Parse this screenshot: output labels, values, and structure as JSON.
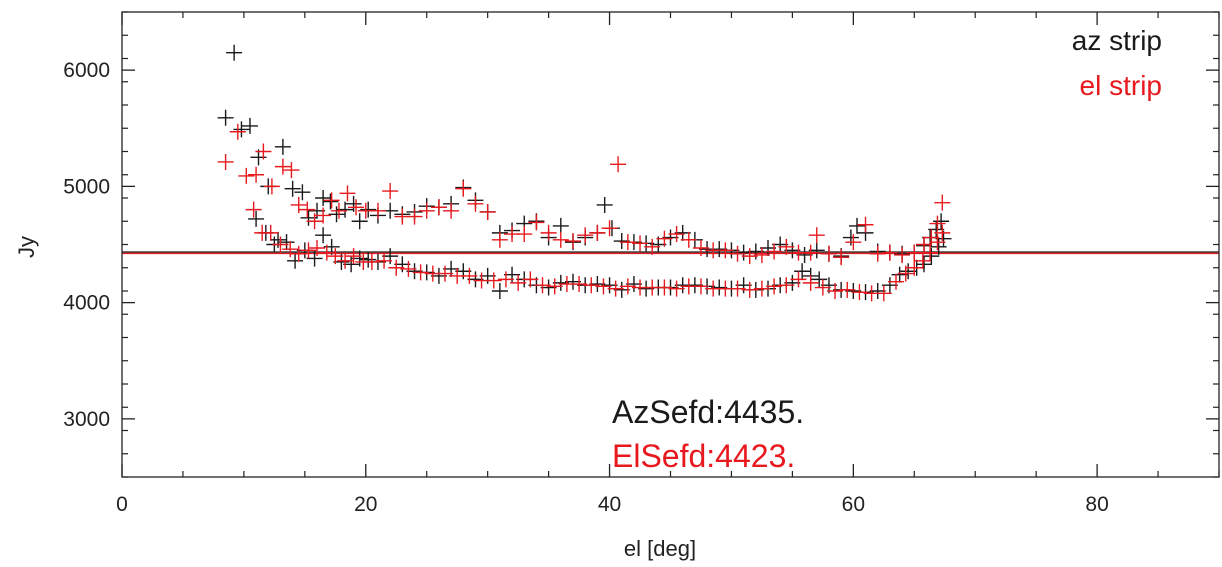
{
  "chart_data": {
    "type": "scatter",
    "xlabel": "el [deg]",
    "ylabel": "Jy",
    "xlim": [
      0,
      90
    ],
    "ylim": [
      2500,
      6500
    ],
    "xticks": [
      0,
      20,
      40,
      60,
      80
    ],
    "yticks": [
      3000,
      4000,
      5000,
      6000
    ],
    "xtick_labels": [
      "0",
      "20",
      "40",
      "60",
      "80"
    ],
    "ytick_labels": [
      "3000",
      "4000",
      "5000",
      "6000"
    ],
    "grid": false,
    "marker": "plus",
    "legend_position": "top-right",
    "legend": [
      {
        "label": "az strip",
        "color": "#1a1a1a"
      },
      {
        "label": "el strip",
        "color": "#e8191e"
      }
    ],
    "annotations": [
      {
        "text": "AzSefd:4435.",
        "color": "#1a1a1a"
      },
      {
        "text": "ElSefd:4423.",
        "color": "#e8191e"
      }
    ],
    "hlines": [
      {
        "value": 4435,
        "color": "#1a1a1a"
      },
      {
        "value": 4423,
        "color": "#e8191e"
      }
    ],
    "series": [
      {
        "name": "az strip",
        "color": "#1a1a1a",
        "points": [
          [
            8.5,
            5590
          ],
          [
            9.2,
            6150
          ],
          [
            9.8,
            5490
          ],
          [
            10.5,
            5520
          ],
          [
            11.2,
            5250
          ],
          [
            12.0,
            5000
          ],
          [
            12.8,
            4540
          ],
          [
            13.2,
            5340
          ],
          [
            14.0,
            4980
          ],
          [
            14.8,
            4950
          ],
          [
            15.3,
            4730
          ],
          [
            16.0,
            4790
          ],
          [
            16.5,
            4900
          ],
          [
            17.1,
            4870
          ],
          [
            17.6,
            4760
          ],
          [
            18.3,
            4800
          ],
          [
            19.0,
            4850
          ],
          [
            19.5,
            4700
          ],
          [
            20.2,
            4800
          ],
          [
            21.0,
            4750
          ],
          [
            22.0,
            4790
          ],
          [
            23.0,
            4760
          ],
          [
            24.0,
            4780
          ],
          [
            25.0,
            4830
          ],
          [
            26.0,
            4820
          ],
          [
            27.0,
            4850
          ],
          [
            28.0,
            4990
          ],
          [
            29.0,
            4880
          ],
          [
            30.0,
            4780
          ],
          [
            31.0,
            4600
          ],
          [
            32.0,
            4620
          ],
          [
            33.0,
            4680
          ],
          [
            34.0,
            4700
          ],
          [
            35.0,
            4560
          ],
          [
            36.0,
            4660
          ],
          [
            37.0,
            4520
          ],
          [
            38.0,
            4560
          ],
          [
            39.0,
            4600
          ],
          [
            39.6,
            4840
          ],
          [
            40.2,
            4640
          ],
          [
            41.0,
            4530
          ],
          [
            42.0,
            4520
          ],
          [
            43.0,
            4510
          ],
          [
            44.0,
            4500
          ],
          [
            45.0,
            4560
          ],
          [
            46.0,
            4600
          ],
          [
            47.0,
            4540
          ],
          [
            48.0,
            4460
          ],
          [
            49.0,
            4460
          ],
          [
            50.0,
            4450
          ],
          [
            51.0,
            4430
          ],
          [
            52.0,
            4440
          ],
          [
            53.0,
            4470
          ],
          [
            54.0,
            4500
          ],
          [
            55.0,
            4450
          ],
          [
            56.0,
            4410
          ],
          [
            57.0,
            4450
          ],
          [
            58.0,
            4420
          ],
          [
            59.0,
            4400
          ],
          [
            59.8,
            4560
          ],
          [
            60.3,
            4660
          ],
          [
            61.0,
            4600
          ],
          [
            62.0,
            4440
          ],
          [
            63.0,
            4430
          ],
          [
            64.0,
            4420
          ],
          [
            65.0,
            4430
          ],
          [
            65.8,
            4490
          ],
          [
            66.3,
            4560
          ],
          [
            66.8,
            4630
          ],
          [
            67.2,
            4700
          ],
          [
            11.0,
            4720
          ],
          [
            11.8,
            4600
          ],
          [
            12.5,
            4500
          ],
          [
            13.5,
            4520
          ],
          [
            14.2,
            4360
          ],
          [
            15.0,
            4450
          ],
          [
            15.8,
            4380
          ],
          [
            16.5,
            4580
          ],
          [
            17.2,
            4480
          ],
          [
            18.0,
            4350
          ],
          [
            18.8,
            4330
          ],
          [
            19.5,
            4380
          ],
          [
            20.2,
            4370
          ],
          [
            21.0,
            4350
          ],
          [
            22.0,
            4400
          ],
          [
            23.0,
            4330
          ],
          [
            24.0,
            4270
          ],
          [
            25.0,
            4260
          ],
          [
            26.0,
            4230
          ],
          [
            27.0,
            4290
          ],
          [
            28.0,
            4270
          ],
          [
            29.0,
            4200
          ],
          [
            30.0,
            4230
          ],
          [
            31.0,
            4100
          ],
          [
            32.0,
            4240
          ],
          [
            33.0,
            4200
          ],
          [
            34.0,
            4150
          ],
          [
            35.0,
            4130
          ],
          [
            36.0,
            4170
          ],
          [
            37.0,
            4180
          ],
          [
            38.0,
            4150
          ],
          [
            39.0,
            4160
          ],
          [
            40.0,
            4150
          ],
          [
            41.0,
            4110
          ],
          [
            42.0,
            4160
          ],
          [
            43.0,
            4120
          ],
          [
            44.0,
            4130
          ],
          [
            45.0,
            4130
          ],
          [
            46.0,
            4150
          ],
          [
            47.0,
            4150
          ],
          [
            48.0,
            4140
          ],
          [
            49.0,
            4130
          ],
          [
            50.0,
            4120
          ],
          [
            51.0,
            4150
          ],
          [
            52.0,
            4110
          ],
          [
            53.0,
            4120
          ],
          [
            54.0,
            4150
          ],
          [
            55.0,
            4170
          ],
          [
            55.8,
            4270
          ],
          [
            56.5,
            4230
          ],
          [
            57.2,
            4200
          ],
          [
            58.0,
            4150
          ],
          [
            59.0,
            4110
          ],
          [
            60.0,
            4100
          ],
          [
            61.0,
            4090
          ],
          [
            62.0,
            4100
          ],
          [
            63.0,
            4150
          ],
          [
            63.8,
            4240
          ],
          [
            64.5,
            4270
          ],
          [
            65.2,
            4300
          ],
          [
            65.8,
            4330
          ],
          [
            66.4,
            4400
          ],
          [
            67.0,
            4480
          ],
          [
            67.4,
            4550
          ]
        ]
      },
      {
        "name": "el strip",
        "color": "#e8191e",
        "points": [
          [
            8.5,
            5210
          ],
          [
            9.5,
            5470
          ],
          [
            10.2,
            5090
          ],
          [
            11.0,
            5100
          ],
          [
            11.6,
            5300
          ],
          [
            12.3,
            5000
          ],
          [
            13.2,
            5170
          ],
          [
            13.9,
            5140
          ],
          [
            14.5,
            4840
          ],
          [
            15.2,
            4800
          ],
          [
            15.8,
            4700
          ],
          [
            16.5,
            4750
          ],
          [
            17.2,
            4880
          ],
          [
            17.8,
            4790
          ],
          [
            18.5,
            4940
          ],
          [
            19.2,
            4820
          ],
          [
            20.0,
            4790
          ],
          [
            21.0,
            4790
          ],
          [
            22.0,
            4960
          ],
          [
            23.0,
            4740
          ],
          [
            24.0,
            4740
          ],
          [
            25.0,
            4790
          ],
          [
            26.0,
            4820
          ],
          [
            27.0,
            4790
          ],
          [
            28.0,
            4980
          ],
          [
            29.0,
            4850
          ],
          [
            30.0,
            4780
          ],
          [
            31.0,
            4540
          ],
          [
            32.0,
            4590
          ],
          [
            33.0,
            4590
          ],
          [
            34.0,
            4690
          ],
          [
            35.0,
            4600
          ],
          [
            36.0,
            4540
          ],
          [
            37.0,
            4530
          ],
          [
            38.0,
            4580
          ],
          [
            39.0,
            4600
          ],
          [
            40.0,
            4640
          ],
          [
            40.7,
            5190
          ],
          [
            41.5,
            4520
          ],
          [
            42.5,
            4510
          ],
          [
            43.5,
            4480
          ],
          [
            44.5,
            4550
          ],
          [
            45.5,
            4590
          ],
          [
            46.5,
            4540
          ],
          [
            47.5,
            4470
          ],
          [
            48.5,
            4450
          ],
          [
            49.5,
            4450
          ],
          [
            50.5,
            4420
          ],
          [
            51.5,
            4400
          ],
          [
            52.5,
            4410
          ],
          [
            53.5,
            4440
          ],
          [
            54.5,
            4480
          ],
          [
            55.5,
            4430
          ],
          [
            56.5,
            4430
          ],
          [
            57.0,
            4580
          ],
          [
            58.0,
            4420
          ],
          [
            59.0,
            4390
          ],
          [
            60.0,
            4520
          ],
          [
            61.0,
            4670
          ],
          [
            62.0,
            4420
          ],
          [
            63.0,
            4430
          ],
          [
            64.0,
            4410
          ],
          [
            65.0,
            4430
          ],
          [
            65.8,
            4500
          ],
          [
            66.4,
            4560
          ],
          [
            66.9,
            4680
          ],
          [
            67.3,
            4860
          ],
          [
            10.8,
            4800
          ],
          [
            11.5,
            4600
          ],
          [
            12.2,
            4600
          ],
          [
            13.0,
            4500
          ],
          [
            13.8,
            4460
          ],
          [
            14.5,
            4420
          ],
          [
            15.3,
            4450
          ],
          [
            16.0,
            4470
          ],
          [
            16.8,
            4430
          ],
          [
            17.5,
            4400
          ],
          [
            18.3,
            4360
          ],
          [
            19.0,
            4400
          ],
          [
            19.8,
            4350
          ],
          [
            20.5,
            4350
          ],
          [
            21.5,
            4360
          ],
          [
            22.5,
            4300
          ],
          [
            23.5,
            4290
          ],
          [
            24.5,
            4260
          ],
          [
            25.5,
            4250
          ],
          [
            26.5,
            4250
          ],
          [
            27.5,
            4230
          ],
          [
            28.5,
            4230
          ],
          [
            29.5,
            4190
          ],
          [
            30.5,
            4190
          ],
          [
            31.5,
            4200
          ],
          [
            32.5,
            4170
          ],
          [
            33.5,
            4200
          ],
          [
            34.5,
            4150
          ],
          [
            35.5,
            4140
          ],
          [
            36.5,
            4160
          ],
          [
            37.5,
            4160
          ],
          [
            38.5,
            4150
          ],
          [
            39.5,
            4140
          ],
          [
            40.5,
            4120
          ],
          [
            41.5,
            4140
          ],
          [
            42.5,
            4130
          ],
          [
            43.5,
            4130
          ],
          [
            44.5,
            4130
          ],
          [
            45.5,
            4120
          ],
          [
            46.5,
            4140
          ],
          [
            47.5,
            4140
          ],
          [
            48.5,
            4120
          ],
          [
            49.5,
            4120
          ],
          [
            50.5,
            4120
          ],
          [
            51.5,
            4110
          ],
          [
            52.5,
            4120
          ],
          [
            53.5,
            4140
          ],
          [
            54.5,
            4150
          ],
          [
            55.5,
            4200
          ],
          [
            56.5,
            4170
          ],
          [
            57.5,
            4130
          ],
          [
            58.5,
            4100
          ],
          [
            59.5,
            4110
          ],
          [
            60.5,
            4090
          ],
          [
            61.5,
            4080
          ],
          [
            62.5,
            4080
          ],
          [
            63.5,
            4180
          ],
          [
            64.3,
            4250
          ],
          [
            65.0,
            4300
          ],
          [
            65.7,
            4360
          ],
          [
            66.3,
            4430
          ],
          [
            66.9,
            4520
          ],
          [
            67.3,
            4600
          ]
        ]
      }
    ]
  }
}
